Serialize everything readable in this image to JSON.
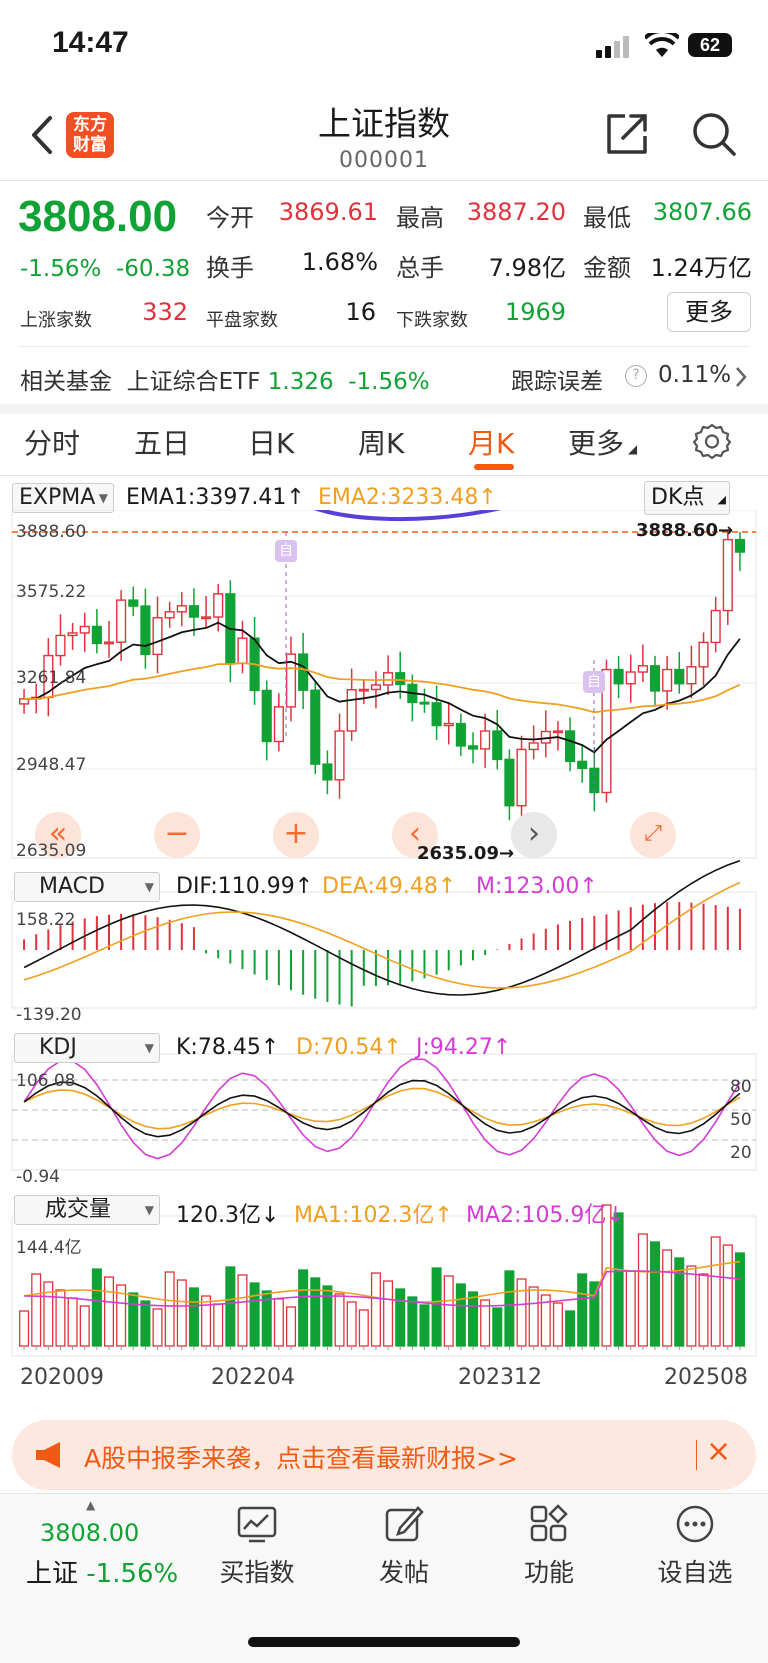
{
  "status": {
    "time": "14:47",
    "battery": "62"
  },
  "header": {
    "logo_line1": "东方",
    "logo_line2": "财富",
    "title": "上证指数",
    "code": "000001"
  },
  "quote": {
    "price": "3808.00",
    "change_pct": "-1.56%",
    "change_abs": "-60.38",
    "open_label": "今开",
    "open": "3869.61",
    "high_label": "最高",
    "high": "3887.20",
    "low_label": "最低",
    "low": "3807.66",
    "turnover_label": "换手",
    "turnover": "1.68%",
    "volume_label": "总手",
    "volume": "7.98亿",
    "amount_label": "金额",
    "amount": "1.24万亿",
    "up_label": "上涨家数",
    "up": "332",
    "flat_label": "平盘家数",
    "flat": "16",
    "down_label": "下跌家数",
    "down": "1969",
    "more": "更多"
  },
  "fund": {
    "label": "相关基金",
    "name": "上证综合ETF",
    "price": "1.326",
    "change": "-1.56%",
    "tracking_label": "跟踪误差",
    "tracking": "0.11%"
  },
  "tabs": [
    {
      "label": "分时"
    },
    {
      "label": "五日"
    },
    {
      "label": "日K"
    },
    {
      "label": "周K"
    },
    {
      "label": "月K"
    },
    {
      "label": "更多"
    }
  ],
  "main_chart": {
    "indicator": "EXPMA",
    "ema1": "EMA1:3397.41↑",
    "ema2": "EMA2:3233.48↑",
    "dk_button": "DK点",
    "ymax_label": "3888.60",
    "tick1": "3575.22",
    "tick2": "3261.84",
    "tick3": "2948.47",
    "ymin_label": "2635.09",
    "high_marker": "3888.60→",
    "low_marker": "2635.09→",
    "event_marker": "自"
  },
  "macd": {
    "indicator": "MACD",
    "dif": "DIF:110.99↑",
    "dea": "DEA:49.48↑",
    "m": "M:123.00↑",
    "max": "158.22",
    "min": "-139.20"
  },
  "kdj": {
    "indicator": "KDJ",
    "k": "K:78.45↑",
    "d": "D:70.54↑",
    "j": "J:94.27↑",
    "max": "106.08",
    "min": "-0.94",
    "l80": "80",
    "l50": "50",
    "l20": "20"
  },
  "vol": {
    "indicator": "成交量",
    "v": "120.3亿↓",
    "ma1": "MA1:102.3亿↑",
    "ma2": "MA2:105.9亿↓",
    "max": "144.4亿"
  },
  "x_axis": [
    "202009",
    "202204",
    "202312",
    "202508"
  ],
  "colors": {
    "up": "#e0323c",
    "down": "#11a235",
    "ema1": "#111111",
    "ema2": "#f0a020",
    "purple": "#d43cd4",
    "accent": "#f05a14"
  },
  "chart_data": {
    "type": "candlestick",
    "period": "monthly",
    "x_range": [
      "202009",
      "202508"
    ],
    "ylim": [
      2635.09,
      3888.6
    ],
    "monthly_close_approx": [
      3218,
      3224,
      3392,
      3473,
      3483,
      3509,
      3441,
      3446,
      3615,
      3591,
      3397,
      3544,
      3568,
      3592,
      3547,
      3547,
      3640,
      3361,
      3462,
      3252,
      3047,
      3186,
      3398,
      3253,
      2956,
      2893,
      3089,
      3255,
      3256,
      3274,
      3323,
      3276,
      3204,
      3202,
      3111,
      3119,
      3029,
      3017,
      3089,
      2975,
      2789,
      3015,
      3041,
      3087,
      3089,
      2967,
      2939,
      2842,
      3336,
      3279,
      3326,
      3351,
      3250,
      3336,
      3279,
      3347,
      3445,
      3573,
      3858,
      3808
    ]
  }
}
